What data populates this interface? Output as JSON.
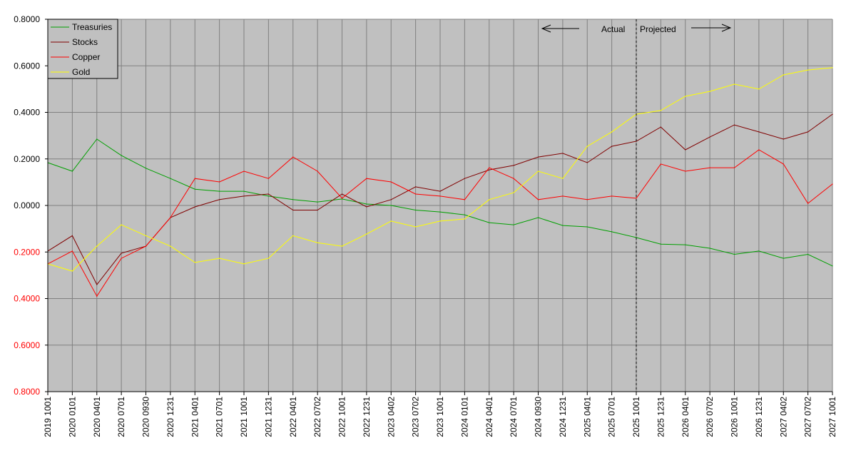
{
  "chart_data": {
    "type": "line",
    "title": "",
    "xlabel": "",
    "ylabel": "",
    "ylim": [
      -0.8,
      0.8
    ],
    "grid": true,
    "legend_position": "top-left",
    "y_ticks": [
      {
        "value": 0.8,
        "label": "0.8000",
        "color": "#000000"
      },
      {
        "value": 0.6,
        "label": "0.6000",
        "color": "#000000"
      },
      {
        "value": 0.4,
        "label": "0.4000",
        "color": "#000000"
      },
      {
        "value": 0.2,
        "label": "0.2000",
        "color": "#000000"
      },
      {
        "value": 0.0,
        "label": "0.0000",
        "color": "#000000"
      },
      {
        "value": -0.2,
        "label": "0.2000",
        "color": "#ff0000"
      },
      {
        "value": -0.4,
        "label": "0.4000",
        "color": "#ff0000"
      },
      {
        "value": -0.6,
        "label": "0.6000",
        "color": "#ff0000"
      },
      {
        "value": -0.8,
        "label": "0.8000",
        "color": "#ff0000"
      }
    ],
    "categories": [
      "2019 1001",
      "2020 0101",
      "2020 0401",
      "2020 0701",
      "2020 0930",
      "2020 1231",
      "2021 0401",
      "2021 0701",
      "2021 1001",
      "2021 1231",
      "2022 0401",
      "2022 0702",
      "2022 1001",
      "2022 1231",
      "2023 0402",
      "2023 0702",
      "2023 1001",
      "2024 0101",
      "2024 0401",
      "2024 0701",
      "2024 0930",
      "2024 1231",
      "2025 0401",
      "2025 0701",
      "2025 1001",
      "2025 1231",
      "2026 0401",
      "2026 0702",
      "2026 1001",
      "2026 1231",
      "2027 0402",
      "2027 0702",
      "2027 1001"
    ],
    "series": [
      {
        "name": "Treasuries",
        "color": "#00a000",
        "values": [
          0.184,
          0.147,
          0.285,
          0.215,
          0.16,
          0.116,
          0.07,
          0.061,
          0.061,
          0.04,
          0.025,
          0.015,
          0.028,
          0.006,
          0.0,
          -0.02,
          -0.028,
          -0.04,
          -0.074,
          -0.083,
          -0.052,
          -0.086,
          -0.092,
          -0.113,
          -0.138,
          -0.166,
          -0.169,
          -0.184,
          -0.21,
          -0.196,
          -0.227,
          -0.21,
          -0.26
        ]
      },
      {
        "name": "Stocks",
        "color": "#800000",
        "values": [
          -0.196,
          -0.13,
          -0.34,
          -0.205,
          -0.175,
          -0.052,
          -0.006,
          0.025,
          0.04,
          0.049,
          -0.02,
          -0.02,
          0.049,
          -0.006,
          0.025,
          0.08,
          0.061,
          0.116,
          0.153,
          0.172,
          0.208,
          0.224,
          0.184,
          0.254,
          0.276,
          0.337,
          0.239,
          0.294,
          0.346,
          0.316,
          0.285,
          0.316,
          0.392
        ]
      },
      {
        "name": "Copper",
        "color": "#ff0000",
        "values": [
          -0.251,
          -0.196,
          -0.39,
          -0.227,
          -0.175,
          -0.052,
          0.116,
          0.101,
          0.147,
          0.116,
          0.208,
          0.147,
          0.031,
          0.116,
          0.101,
          0.049,
          0.04,
          0.025,
          0.162,
          0.116,
          0.025,
          0.04,
          0.025,
          0.04,
          0.031,
          0.178,
          0.147,
          0.162,
          0.162,
          0.239,
          0.178,
          0.009,
          0.092
        ]
      },
      {
        "name": "Gold",
        "color": "#ffff00",
        "values": [
          -0.251,
          -0.282,
          -0.175,
          -0.083,
          -0.13,
          -0.175,
          -0.245,
          -0.227,
          -0.251,
          -0.227,
          -0.13,
          -0.16,
          -0.175,
          -0.123,
          -0.067,
          -0.092,
          -0.067,
          -0.058,
          0.025,
          0.055,
          0.147,
          0.116,
          0.254,
          0.316,
          0.392,
          0.408,
          0.469,
          0.49,
          0.521,
          0.5,
          0.561,
          0.582,
          0.592
        ]
      }
    ],
    "annotations": {
      "divider_category": "2025 1001",
      "actual_label": "Actual",
      "projected_label": "Projected"
    }
  }
}
